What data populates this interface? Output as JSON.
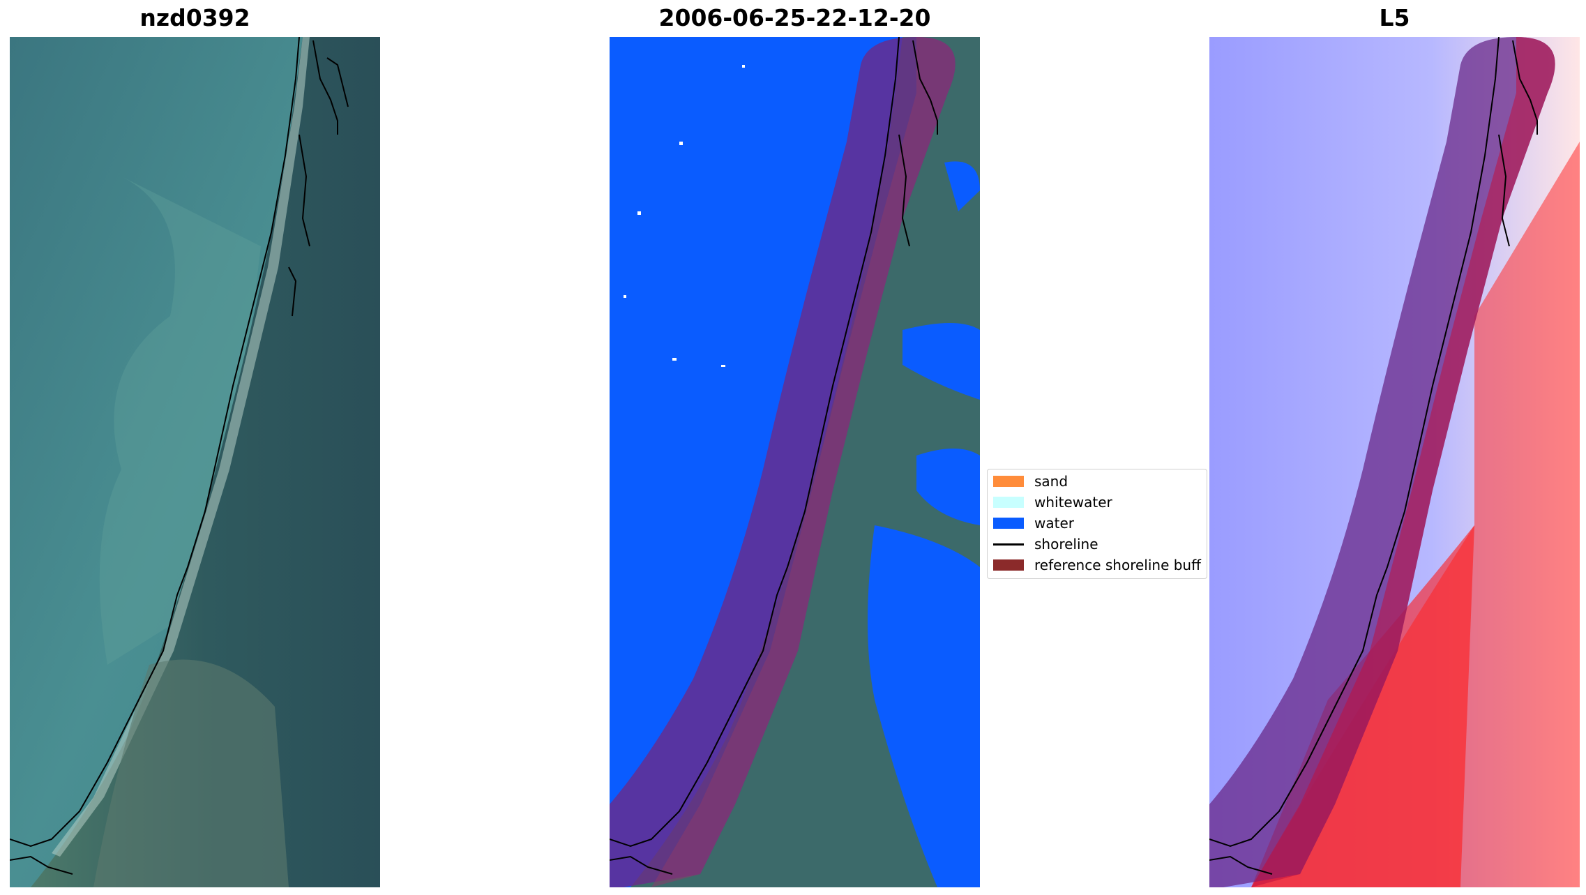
{
  "panels": [
    {
      "title": "nzd0392"
    },
    {
      "title": "2006-06-25-22-12-20"
    },
    {
      "title": "L5"
    }
  ],
  "legend": {
    "items": [
      {
        "label": "sand",
        "color": "#ff8c3a",
        "kind": "patch"
      },
      {
        "label": "whitewater",
        "color": "#c8ffff",
        "kind": "patch"
      },
      {
        "label": "water",
        "color": "#0a5cff",
        "kind": "patch"
      },
      {
        "label": "shoreline",
        "color": "#000000",
        "kind": "line"
      },
      {
        "label": "reference shoreline buff",
        "color": "#8b2a2a",
        "kind": "patch"
      }
    ]
  },
  "colors": {
    "ocean_rgb": "#3d7b86",
    "land_rgb": "#2f5a5c",
    "water_class": "#0a5cff",
    "buffer": "#7a1e5a",
    "l5_low": "#6f6fff",
    "l5_high": "#ff1a1a"
  }
}
